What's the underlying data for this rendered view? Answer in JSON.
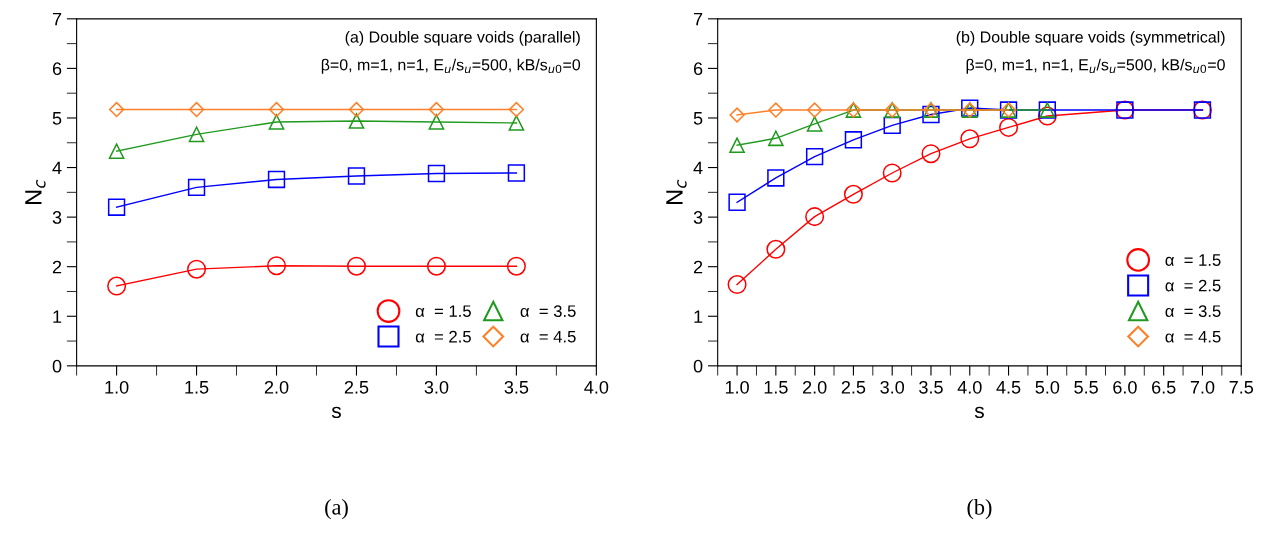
{
  "chart_data": [
    {
      "type": "line",
      "xlabel": "s",
      "ylabel": "N$_{c}$",
      "xlim": [
        0.75,
        4.0
      ],
      "xticks": [
        {
          "value": 1.0,
          "label": "1.0"
        },
        1.5,
        {
          "value": 2.0,
          "label": "2.0"
        },
        2.5,
        {
          "value": 3.0,
          "label": "3.0"
        },
        3.5,
        {
          "value": 4.0,
          "label": "4.0"
        }
      ],
      "ylim": [
        0,
        7
      ],
      "yticks": [
        0,
        1,
        2,
        3,
        4,
        5,
        6,
        7
      ],
      "grid": false,
      "legend": "bottom right",
      "annotations": [
        "(a) Double square voids (parallel)",
        "β=0, m=1, n=1, E$_{u}$/s$_{u}$=500, kB/s$_{u0}$=0",
        "(a)"
      ],
      "series": [
        {
          "name": "α  = 1.5",
          "color": "#ff0000",
          "marker": "circle",
          "x": [
            1.0,
            1.5,
            2.0,
            2.5,
            3.0,
            3.5
          ],
          "values": [
            1.61,
            1.95,
            2.02,
            2.01,
            2.01,
            2.01
          ]
        },
        {
          "name": "α  = 2.5",
          "color": "#0000ff",
          "marker": "square",
          "x": [
            1.0,
            1.5,
            2.0,
            2.5,
            3.0,
            3.5
          ],
          "values": [
            3.2,
            3.6,
            3.76,
            3.83,
            3.88,
            3.89
          ]
        },
        {
          "name": "α  = 3.5",
          "color": "#1f9a1f",
          "marker": "triangle",
          "x": [
            1.0,
            1.5,
            2.0,
            2.5,
            3.0,
            3.5
          ],
          "values": [
            4.33,
            4.67,
            4.92,
            4.94,
            4.92,
            4.9
          ]
        },
        {
          "name": "α  = 4.5",
          "color": "#ff7f27",
          "marker": "diamond",
          "x": [
            1.0,
            1.5,
            2.0,
            2.5,
            3.0,
            3.5
          ],
          "values": [
            5.17,
            5.17,
            5.17,
            5.17,
            5.17,
            5.17
          ]
        }
      ]
    },
    {
      "type": "line",
      "xlabel": "s",
      "ylabel": "N$_{c}$",
      "xlim": [
        0.75,
        7.5
      ],
      "xticks": [
        {
          "value": 1.0,
          "label": "1.0"
        },
        1.5,
        {
          "value": 2.0,
          "label": "2.0"
        },
        2.5,
        {
          "value": 3.0,
          "label": "3.0"
        },
        3.5,
        {
          "value": 4.0,
          "label": "4.0"
        },
        4.5,
        {
          "value": 5.0,
          "label": "5.0"
        },
        5.5,
        {
          "value": 6.0,
          "label": "6.0"
        },
        6.5,
        {
          "value": 7.0,
          "label": "7.0"
        },
        7.5
      ],
      "ylim": [
        0,
        7
      ],
      "yticks": [
        0,
        1,
        2,
        3,
        4,
        5,
        6,
        7
      ],
      "grid": false,
      "legend": "bottom right",
      "annotations": [
        "(b) Double square voids (symmetrical)",
        "β=0, m=1, n=1, E$_{u}$/s$_{u}$=500, kB/s$_{u0}$=0",
        "(b)"
      ],
      "series": [
        {
          "name": "α  = 1.5",
          "color": "#ff0000",
          "marker": "circle",
          "x": [
            1.0,
            1.5,
            2.0,
            2.5,
            3.0,
            3.5,
            4.0,
            4.5,
            5.0,
            6.0,
            7.0
          ],
          "values": [
            1.64,
            2.35,
            3.01,
            3.46,
            3.89,
            4.28,
            4.58,
            4.81,
            5.04,
            5.16,
            5.16
          ]
        },
        {
          "name": "α  = 2.5",
          "color": "#0000ff",
          "marker": "square",
          "x": [
            1.0,
            1.5,
            2.0,
            2.5,
            3.0,
            3.5,
            4.0,
            4.5,
            5.0,
            6.0,
            7.0
          ],
          "values": [
            3.3,
            3.79,
            4.22,
            4.56,
            4.85,
            5.07,
            5.2,
            5.16,
            5.16,
            5.16,
            5.16
          ]
        },
        {
          "name": "α  = 3.5",
          "color": "#1f9a1f",
          "marker": "triangle",
          "x": [
            1.0,
            1.5,
            2.0,
            2.5,
            3.0,
            3.5,
            4.0,
            4.5,
            5.0
          ],
          "values": [
            4.45,
            4.59,
            4.88,
            5.16,
            5.16,
            5.16,
            5.16,
            5.16,
            5.16
          ]
        },
        {
          "name": "α  = 4.5",
          "color": "#ff7f27",
          "marker": "diamond",
          "x": [
            1.0,
            1.5,
            2.0,
            2.5,
            3.0,
            3.5,
            4.0,
            4.5
          ],
          "values": [
            5.06,
            5.16,
            5.16,
            5.16,
            5.16,
            5.16,
            5.16,
            5.16
          ]
        }
      ]
    }
  ]
}
